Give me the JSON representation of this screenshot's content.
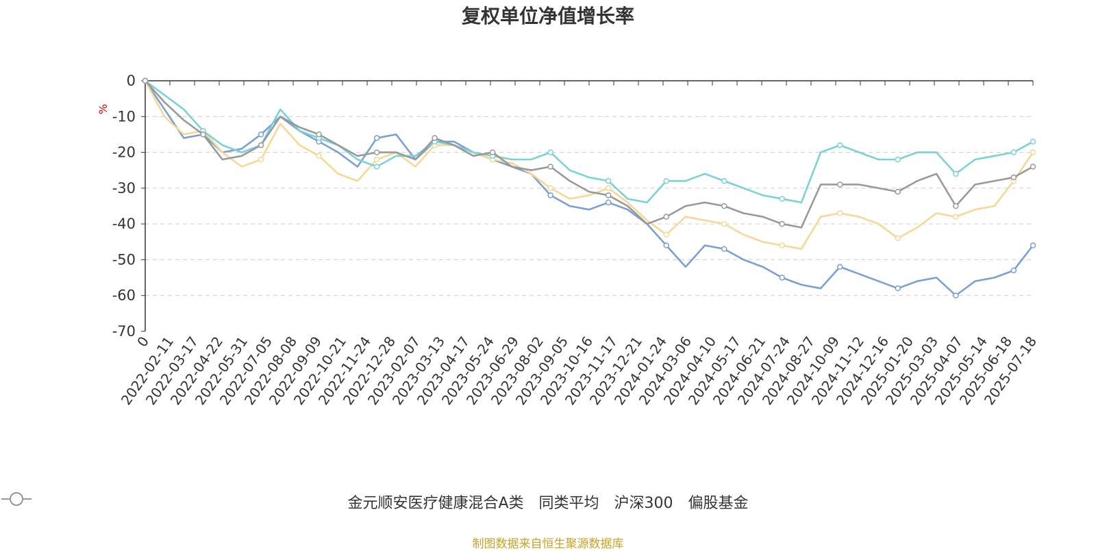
{
  "chart_data": {
    "type": "line",
    "title": "复权单位净值增长率",
    "ylabel": "%",
    "ylim": [
      -70,
      0
    ],
    "yticks": [
      0,
      -10,
      -20,
      -30,
      -40,
      -50,
      -60,
      -70
    ],
    "x_ticks": [
      "0",
      "2022-02-11",
      "2022-03-17",
      "2022-04-22",
      "2022-05-31",
      "2022-07-05",
      "2022-08-08",
      "2022-09-09",
      "2022-10-21",
      "2022-11-24",
      "2022-12-28",
      "2023-02-07",
      "2023-03-13",
      "2023-04-17",
      "2023-05-24",
      "2023-06-29",
      "2023-08-02",
      "2023-09-05",
      "2023-10-16",
      "2023-11-17",
      "2023-12-21",
      "2024-01-24",
      "2024-03-06",
      "2024-04-10",
      "2024-05-17",
      "2024-06-21",
      "2024-07-24",
      "2024-08-27",
      "2024-10-09",
      "2024-11-12",
      "2024-12-16",
      "2025-01-20",
      "2025-03-03",
      "2025-04-07",
      "2025-05-14",
      "2025-06-18",
      "2025-07-18"
    ],
    "grid": true,
    "legend_position": "bottom",
    "series": [
      {
        "name": "金元顺安医疗健康混合A类",
        "color": "#7a9fd4",
        "values": [
          0,
          -8,
          -16,
          -15,
          -20,
          -19,
          -15,
          -10,
          -14,
          -17,
          -20,
          -24,
          -16,
          -15,
          -22,
          -17,
          -17,
          -20,
          -22,
          -24,
          -26,
          -32,
          -35,
          -36,
          -34,
          -36,
          -40,
          -46,
          -52,
          -46,
          -47,
          -50,
          -52,
          -55,
          -57,
          -58,
          -52,
          -54,
          -56,
          -58,
          -56,
          -55,
          -60,
          -56,
          -55,
          -53,
          -46
        ]
      },
      {
        "name": "同类平均",
        "color": "#f7d794",
        "values": [
          0,
          -10,
          -15,
          -14,
          -20,
          -24,
          -22,
          -12,
          -18,
          -21,
          -26,
          -28,
          -22,
          -20,
          -24,
          -18,
          -18,
          -20,
          -22,
          -23,
          -26,
          -30,
          -33,
          -32,
          -30,
          -34,
          -39,
          -43,
          -38,
          -39,
          -40,
          -43,
          -45,
          -46,
          -47,
          -38,
          -37,
          -38,
          -40,
          -44,
          -41,
          -37,
          -38,
          -36,
          -35,
          -28,
          -20
        ]
      },
      {
        "name": "沪深300",
        "color": "#79d2d6",
        "values": [
          0,
          -4,
          -8,
          -14,
          -18,
          -20,
          -18,
          -8,
          -14,
          -16,
          -18,
          -22,
          -24,
          -21,
          -21,
          -17,
          -18,
          -20,
          -21,
          -22,
          -22,
          -20,
          -25,
          -27,
          -28,
          -33,
          -34,
          -28,
          -28,
          -26,
          -28,
          -30,
          -32,
          -33,
          -34,
          -20,
          -18,
          -20,
          -22,
          -22,
          -20,
          -20,
          -26,
          -22,
          -21,
          -20,
          -17
        ]
      },
      {
        "name": "偏股基金",
        "color": "#999999",
        "values": [
          0,
          -6,
          -11,
          -15,
          -22,
          -21,
          -18,
          -10,
          -13,
          -15,
          -18,
          -21,
          -20,
          -20,
          -22,
          -16,
          -18,
          -21,
          -20,
          -24,
          -25,
          -24,
          -28,
          -31,
          -32,
          -35,
          -40,
          -38,
          -35,
          -34,
          -35,
          -37,
          -38,
          -40,
          -41,
          -29,
          -29,
          -29,
          -30,
          -31,
          -28,
          -26,
          -35,
          -29,
          -28,
          -27,
          -24
        ]
      }
    ]
  },
  "source_text": "制图数据来自恒生聚源数据库"
}
